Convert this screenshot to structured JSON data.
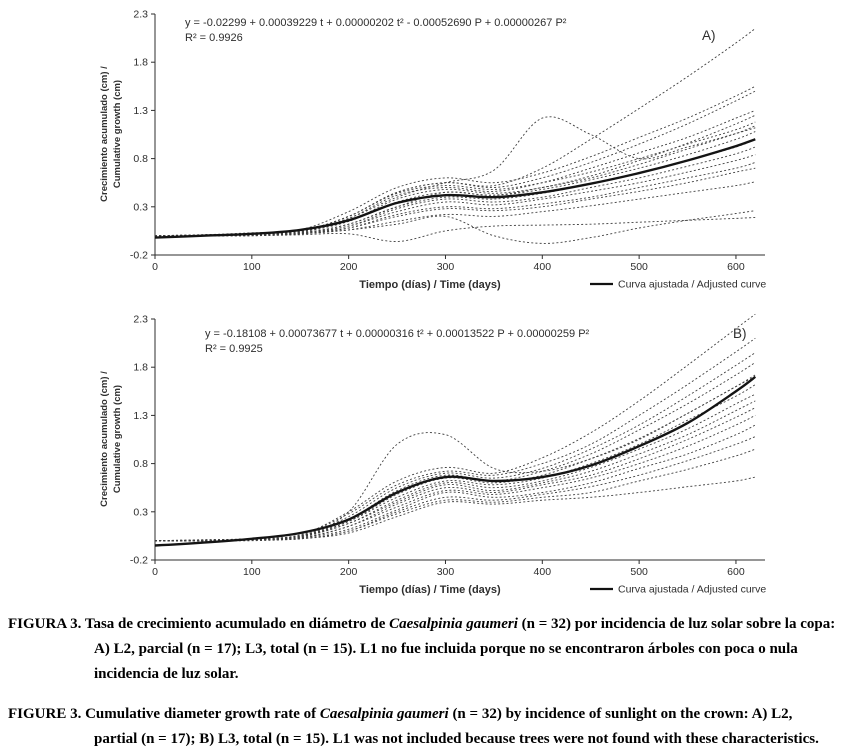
{
  "page": {
    "background": "#ffffff",
    "text_color": "#2e2e2e",
    "curve_color": "#3f3f3f",
    "fitted_color": "#141414"
  },
  "captions": {
    "es": {
      "part1": "FIGURA 3. Tasa de crecimiento acumulado en diámetro de ",
      "species": "Caesalpinia gaumeri",
      "part2": " (n = 32) por incidencia de luz solar sobre la copa: A) L2, parcial (n = 17); L3, total (n = 15). L1 no fue incluida porque no se encontraron árboles con poca o nula incidencia de luz solar."
    },
    "en": {
      "part1": "FIGURE 3. Cumulative diameter growth rate of ",
      "species": "Caesalpinia gaumeri",
      "part2": " (n = 32) by incidence of sunlight on the crown: A) L2, partial (n = 17); B) L3, total (n = 15). L1 was not included because trees were not found with these characteristics."
    }
  },
  "chart_data": [
    {
      "type": "line",
      "label": "A)",
      "equation": "y = -0.02299 + 0.00039229 t + 0.00000202 t² - 0.00052690 P + 0.00000267 P²",
      "r_squared": "R² = 0.9926",
      "ylabel_line1": "Crecimiento acumulado (cm) /",
      "ylabel_line2": "Cumulative growth  (cm)",
      "xlabel": "Tiempo (días) / Time (days)",
      "legend": "Curva ajustada / Adjusted curve",
      "xlim": [
        0,
        630
      ],
      "ylim": [
        -0.2,
        2.3
      ],
      "x_ticks": [
        0,
        100,
        200,
        300,
        400,
        500,
        600
      ],
      "y_ticks": [
        -0.2,
        0.3,
        0.8,
        1.3,
        1.8,
        2.3
      ],
      "x": [
        0,
        50,
        100,
        150,
        200,
        250,
        300,
        350,
        400,
        450,
        500,
        550,
        600,
        620
      ],
      "fitted": [
        -0.02,
        0.0,
        0.02,
        0.06,
        0.16,
        0.34,
        0.42,
        0.4,
        0.45,
        0.54,
        0.65,
        0.78,
        0.93,
        1.0
      ],
      "individuals": [
        [
          0,
          0.01,
          0.02,
          0.05,
          0.2,
          0.45,
          0.55,
          0.52,
          0.7,
          1.0,
          1.32,
          1.65,
          2.0,
          2.15
        ],
        [
          0,
          0.01,
          0.02,
          0.06,
          0.25,
          0.5,
          0.6,
          0.55,
          0.65,
          0.82,
          1.02,
          1.22,
          1.45,
          1.55
        ],
        [
          0,
          0.01,
          0.03,
          0.05,
          0.2,
          0.45,
          0.55,
          0.5,
          0.6,
          0.76,
          0.95,
          1.16,
          1.4,
          1.5
        ],
        [
          0,
          0.0,
          0.02,
          0.05,
          0.18,
          0.4,
          0.55,
          0.68,
          1.22,
          1.05,
          0.8,
          0.92,
          1.06,
          1.12
        ],
        [
          0,
          0.0,
          0.02,
          0.04,
          0.18,
          0.42,
          0.5,
          0.46,
          0.55,
          0.7,
          0.86,
          1.02,
          1.22,
          1.3
        ],
        [
          0,
          0.0,
          0.01,
          0.04,
          0.15,
          0.38,
          0.48,
          0.44,
          0.5,
          0.62,
          0.78,
          0.96,
          1.16,
          1.25
        ],
        [
          0,
          0.0,
          0.02,
          0.05,
          0.2,
          0.44,
          0.52,
          0.48,
          0.55,
          0.66,
          0.8,
          0.95,
          1.1,
          1.18
        ],
        [
          0,
          0.0,
          0.01,
          0.03,
          0.12,
          0.3,
          0.45,
          0.42,
          0.5,
          0.6,
          0.74,
          0.9,
          1.06,
          1.14
        ],
        [
          0,
          0.0,
          0.02,
          0.04,
          0.15,
          0.35,
          0.45,
          0.42,
          0.48,
          0.58,
          0.7,
          0.84,
          1.0,
          1.08
        ],
        [
          0,
          0.0,
          0.01,
          0.03,
          0.12,
          0.3,
          0.4,
          0.38,
          0.44,
          0.54,
          0.65,
          0.78,
          0.92,
          1.0
        ],
        [
          0,
          0.0,
          0.01,
          0.03,
          0.1,
          0.28,
          0.38,
          0.35,
          0.4,
          0.5,
          0.6,
          0.72,
          0.85,
          0.92
        ],
        [
          0,
          0.0,
          0.01,
          0.02,
          0.1,
          0.25,
          0.35,
          0.32,
          0.38,
          0.46,
          0.55,
          0.66,
          0.78,
          0.84
        ],
        [
          0,
          0.0,
          0.01,
          0.02,
          0.08,
          0.22,
          0.3,
          0.28,
          0.33,
          0.4,
          0.5,
          0.6,
          0.7,
          0.76
        ],
        [
          0,
          0.0,
          0.0,
          0.02,
          0.08,
          0.2,
          0.28,
          0.26,
          0.3,
          0.38,
          0.46,
          0.55,
          0.66,
          0.7
        ],
        [
          0,
          0.0,
          0.0,
          0.02,
          0.06,
          0.15,
          0.22,
          0.2,
          0.25,
          0.31,
          0.38,
          0.45,
          0.52,
          0.56
        ],
        [
          0,
          0.0,
          0.01,
          0.02,
          0.06,
          0.12,
          0.2,
          0.0,
          -0.08,
          -0.02,
          0.08,
          0.16,
          0.23,
          0.26
        ],
        [
          0,
          0.0,
          0.0,
          0.01,
          0.02,
          -0.06,
          0.05,
          0.1,
          0.11,
          0.12,
          0.14,
          0.16,
          0.18,
          0.19
        ]
      ]
    },
    {
      "type": "line",
      "label": "B)",
      "equation": "y = -0.18108 + 0.00073677 t + 0.00000316 t² + 0.00013522 P + 0.00000259 P²",
      "r_squared": "R² = 0.9925",
      "ylabel_line1": "Crecimiento acumulado (cm) /",
      "ylabel_line2": "Cumulative growth (cm)",
      "xlabel": "Tiempo (días) / Time (days)",
      "legend": "Curva ajustada / Adjusted curve",
      "xlim": [
        0,
        630
      ],
      "ylim": [
        -0.2,
        2.3
      ],
      "x_ticks": [
        0,
        100,
        200,
        300,
        400,
        500,
        600
      ],
      "y_ticks": [
        -0.2,
        0.3,
        0.8,
        1.3,
        1.8,
        2.3
      ],
      "x": [
        0,
        50,
        100,
        150,
        200,
        250,
        300,
        350,
        400,
        450,
        500,
        550,
        600,
        620
      ],
      "fitted": [
        -0.05,
        -0.02,
        0.02,
        0.08,
        0.22,
        0.5,
        0.66,
        0.62,
        0.66,
        0.78,
        0.98,
        1.22,
        1.55,
        1.7
      ],
      "individuals": [
        [
          0,
          0.01,
          0.02,
          0.06,
          0.3,
          0.62,
          0.76,
          0.7,
          0.86,
          1.12,
          1.45,
          1.82,
          2.2,
          2.35
        ],
        [
          0,
          0.01,
          0.02,
          0.06,
          0.28,
          0.58,
          0.72,
          0.68,
          0.8,
          1.0,
          1.3,
          1.62,
          1.96,
          2.1
        ],
        [
          0,
          0.0,
          0.02,
          0.05,
          0.25,
          0.55,
          0.7,
          0.65,
          0.75,
          0.95,
          1.2,
          1.5,
          1.82,
          1.95
        ],
        [
          0,
          0.0,
          0.02,
          0.05,
          0.3,
          1.0,
          1.1,
          0.75,
          0.72,
          0.85,
          1.05,
          1.32,
          1.6,
          1.72
        ],
        [
          0,
          0.0,
          0.02,
          0.05,
          0.22,
          0.52,
          0.68,
          0.62,
          0.72,
          0.9,
          1.15,
          1.42,
          1.72,
          1.85
        ],
        [
          0,
          0.0,
          0.02,
          0.05,
          0.2,
          0.48,
          0.65,
          0.6,
          0.68,
          0.85,
          1.06,
          1.32,
          1.6,
          1.7
        ],
        [
          0,
          0.0,
          0.01,
          0.04,
          0.2,
          0.45,
          0.62,
          0.58,
          0.65,
          0.8,
          1.0,
          1.25,
          1.5,
          1.62
        ],
        [
          0,
          0.0,
          0.01,
          0.04,
          0.18,
          0.42,
          0.6,
          0.55,
          0.62,
          0.76,
          0.95,
          1.16,
          1.42,
          1.52
        ],
        [
          0,
          0.0,
          0.01,
          0.04,
          0.18,
          0.4,
          0.58,
          0.52,
          0.6,
          0.72,
          0.9,
          1.1,
          1.35,
          1.45
        ],
        [
          0,
          0.0,
          0.01,
          0.03,
          0.15,
          0.38,
          0.55,
          0.5,
          0.58,
          0.68,
          0.85,
          1.05,
          1.28,
          1.38
        ],
        [
          0,
          0.0,
          0.01,
          0.03,
          0.15,
          0.35,
          0.52,
          0.48,
          0.55,
          0.65,
          0.8,
          0.98,
          1.2,
          1.3
        ],
        [
          0,
          0.0,
          0.01,
          0.03,
          0.12,
          0.32,
          0.5,
          0.45,
          0.5,
          0.6,
          0.75,
          0.9,
          1.1,
          1.2
        ],
        [
          0,
          0.0,
          0.01,
          0.02,
          0.1,
          0.3,
          0.45,
          0.42,
          0.48,
          0.56,
          0.68,
          0.83,
          1.0,
          1.08
        ],
        [
          0,
          0.0,
          0.01,
          0.02,
          0.1,
          0.28,
          0.42,
          0.4,
          0.45,
          0.5,
          0.62,
          0.74,
          0.88,
          0.95
        ],
        [
          0,
          0.0,
          0.0,
          0.02,
          0.08,
          0.25,
          0.4,
          0.38,
          0.42,
          0.45,
          0.5,
          0.56,
          0.62,
          0.66
        ]
      ]
    }
  ]
}
